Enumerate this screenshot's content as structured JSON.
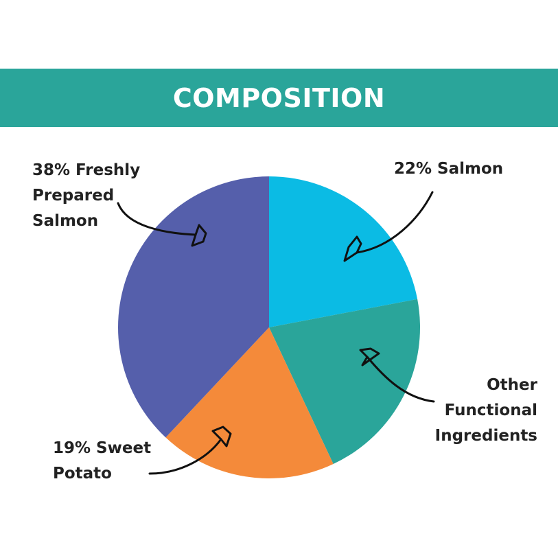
{
  "header": {
    "title": "COMPOSITION",
    "color": "#2aa59a"
  },
  "chart_data": {
    "type": "pie",
    "title": "COMPOSITION",
    "start": "top",
    "direction": "clockwise",
    "slices": [
      {
        "label": "22% Salmon",
        "value": 22,
        "color": "#0bbbe4"
      },
      {
        "label": "Other Functional Ingredients",
        "value": 21,
        "color": "#2aa59a"
      },
      {
        "label": "19% Sweet Potato",
        "value": 19,
        "color": "#f48a3a"
      },
      {
        "label": "38% Freshly Prepared Salmon",
        "value": 38,
        "color": "#555fab"
      }
    ],
    "label_lines": {
      "salmon": [
        "22% Salmon"
      ],
      "other": [
        "Other",
        "Functional",
        "Ingredients"
      ],
      "sweet_potato": [
        "19% Sweet",
        "Potato"
      ],
      "fresh_salmon": [
        "38% Freshly",
        "Prepared",
        "Salmon"
      ]
    }
  }
}
